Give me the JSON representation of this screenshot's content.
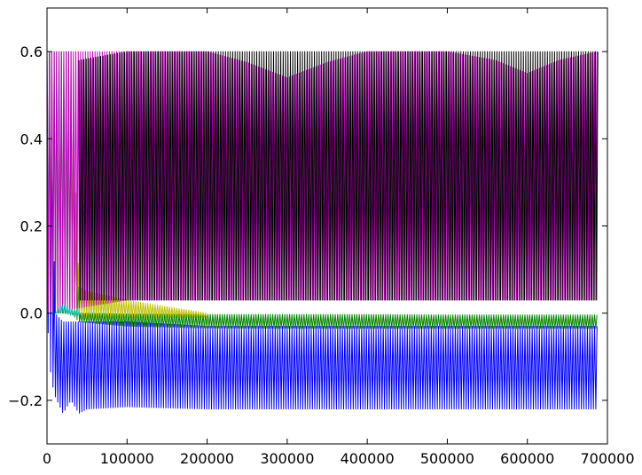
{
  "chart_data": {
    "type": "line",
    "title": "",
    "xlabel": "",
    "ylabel": "",
    "xlim": [
      0,
      700000
    ],
    "ylim": [
      -0.3,
      0.7
    ],
    "grid": false,
    "legend": "none",
    "x_ticks": [
      {
        "value": 0,
        "label": "0"
      },
      {
        "value": 100000,
        "label": "100000"
      },
      {
        "value": 200000,
        "label": "200000"
      },
      {
        "value": 300000,
        "label": "300000"
      },
      {
        "value": 400000,
        "label": "400000"
      },
      {
        "value": 500000,
        "label": "500000"
      },
      {
        "value": 600000,
        "label": "600000"
      },
      {
        "value": 700000,
        "label": "700000"
      }
    ],
    "y_ticks": [
      {
        "value": -0.2,
        "label": "−0.2"
      },
      {
        "value": 0.0,
        "label": "0.0"
      },
      {
        "value": 0.2,
        "label": "0.2"
      },
      {
        "value": 0.4,
        "label": "0.4"
      },
      {
        "value": 0.6,
        "label": "0.6"
      }
    ],
    "series": [
      {
        "color": "#0000ff",
        "x": [
          0,
          5000,
          10000,
          20000,
          30000,
          40000,
          50000,
          100000,
          200000,
          300000,
          400000,
          500000,
          600000,
          688000
        ],
        "y_upper": [
          0.6,
          0.59,
          0.0,
          -0.02,
          -0.02,
          -0.02,
          -0.02,
          -0.02,
          -0.03,
          -0.03,
          -0.03,
          -0.03,
          -0.03,
          -0.03
        ],
        "y_lower": [
          0.0,
          -0.15,
          -0.19,
          -0.23,
          -0.2,
          -0.23,
          -0.22,
          -0.215,
          -0.22,
          -0.22,
          -0.22,
          -0.22,
          -0.22,
          -0.22
        ]
      },
      {
        "color": "#008000",
        "x": [
          0,
          10000,
          20000,
          30000,
          40000,
          100000,
          200000,
          300000,
          400000,
          500000,
          600000,
          688000
        ],
        "y_upper": [
          0.6,
          0.6,
          0.6,
          0.6,
          0.0,
          -0.002,
          -0.003,
          -0.003,
          -0.003,
          -0.004,
          -0.004,
          -0.004
        ],
        "y_lower": [
          0.0,
          0.0,
          0.0,
          0.0,
          -0.02,
          -0.03,
          -0.034,
          -0.035,
          -0.035,
          -0.035,
          -0.035,
          -0.035
        ]
      },
      {
        "color": "#bfbf00",
        "x": [
          30000,
          40000,
          50000,
          100000,
          150000,
          200000
        ],
        "y_upper": [
          0.6,
          0.06,
          0.05,
          0.03,
          0.015,
          0.0
        ],
        "y_lower": [
          0.0,
          0.0,
          -0.01,
          -0.01,
          -0.01,
          -0.01
        ]
      },
      {
        "color": "#bf00bf",
        "x": [
          0,
          100000,
          200000,
          250000,
          300000,
          350000,
          400000,
          500000,
          560000,
          600000,
          640000,
          688000
        ],
        "y_upper": [
          0.6,
          0.6,
          0.6,
          0.575,
          0.54,
          0.575,
          0.6,
          0.6,
          0.58,
          0.55,
          0.58,
          0.6
        ],
        "y_lower": [
          0.0,
          0.03,
          0.03,
          0.03,
          0.03,
          0.03,
          0.03,
          0.03,
          0.03,
          0.03,
          0.03,
          0.03
        ]
      },
      {
        "color": "#00bfbf",
        "x": [
          10000,
          20000,
          30000,
          40000
        ],
        "y_upper": [
          0.0,
          0.02,
          0.01,
          0.005
        ],
        "y_lower": [
          0.0,
          0.0,
          -0.005,
          -0.005
        ]
      },
      {
        "color": "#000000",
        "x": [
          40000,
          100000,
          200000,
          300000,
          400000,
          500000,
          600000,
          688000
        ],
        "y_upper": [
          0.58,
          0.6,
          0.6,
          0.6,
          0.6,
          0.6,
          0.6,
          0.6
        ],
        "y_lower": [
          0.03,
          0.03,
          0.03,
          0.03,
          0.03,
          0.03,
          0.03,
          0.03
        ]
      }
    ]
  }
}
